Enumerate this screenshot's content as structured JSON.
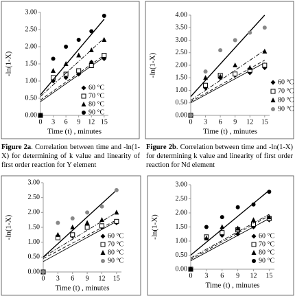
{
  "chart_data": [
    {
      "type": "scatter",
      "x_label": "Time (t) , minutes",
      "y_label": "-ln(1-X)",
      "x": [
        0,
        3,
        6,
        9,
        12,
        15
      ],
      "xlim": [
        0,
        16
      ],
      "xticks": [
        0,
        3,
        6,
        9,
        12,
        15
      ],
      "ylim": [
        0,
        3
      ],
      "yticks": [
        {
          "value": 0,
          "label": "0.00"
        },
        {
          "value": 0.5,
          "label": "0.50"
        },
        {
          "value": 1,
          "label": "1.00"
        },
        {
          "value": 1.5,
          "label": "1.50"
        },
        {
          "value": 2,
          "label": "2.00"
        },
        {
          "value": 2.5,
          "label": "2.50"
        },
        {
          "value": 3,
          "label": "3.00"
        }
      ],
      "trend_x": [
        0,
        15
      ],
      "series": [
        {
          "name": "60 °C",
          "marker": "diamond",
          "color": "#000000",
          "line_style": "solid",
          "values": [
            0,
            1.0,
            1.1,
            1.2,
            1.55,
            1.65
          ],
          "trend": [
            0.4,
            1.7
          ]
        },
        {
          "name": "70 °C",
          "marker": "square-open",
          "color": "#000000",
          "line_style": "dashed",
          "values": [
            0,
            1.1,
            1.2,
            1.3,
            1.45,
            1.75
          ],
          "trend": [
            0.45,
            1.75
          ]
        },
        {
          "name": "80 °C",
          "marker": "triangle",
          "color": "#000000",
          "line_style": "dashdot",
          "values": [
            0,
            1.3,
            1.5,
            1.75,
            1.9,
            2.2
          ],
          "trend": [
            0.55,
            2.25
          ]
        },
        {
          "name": "90 °C",
          "marker": "circle",
          "color": "#000000",
          "line_style": "solid",
          "values": [
            0,
            1.65,
            2.0,
            2.2,
            2.45,
            2.9
          ],
          "trend": [
            0.6,
            2.8
          ]
        }
      ]
    },
    {
      "type": "scatter",
      "x_label": "Time (t) , minutes",
      "y_label": "-ln(1-X)",
      "x": [
        0,
        3,
        6,
        9,
        12,
        15
      ],
      "xlim": [
        0,
        16
      ],
      "xticks": [
        0,
        3,
        6,
        9,
        12,
        15
      ],
      "ylim": [
        0,
        4
      ],
      "yticks": [
        {
          "value": 0,
          "label": "0.00"
        },
        {
          "value": 0.5,
          "label": "0.50"
        },
        {
          "value": 1,
          "label": "1.00"
        },
        {
          "value": 1.5,
          "label": "1.50"
        },
        {
          "value": 2,
          "label": "2.00"
        },
        {
          "value": 2.5,
          "label": "2.50"
        },
        {
          "value": 3,
          "label": "3.00"
        },
        {
          "value": 3.5,
          "label": "3.50"
        },
        {
          "value": 4,
          "label": "4.00"
        }
      ],
      "trend_x": [
        0,
        15
      ],
      "series": [
        {
          "name": "60 °C",
          "marker": "diamond",
          "color": "#000000",
          "line_style": "solid",
          "values": [
            0,
            1.1,
            1.5,
            1.6,
            1.7,
            1.9
          ],
          "trend": [
            0.5,
            2.1
          ]
        },
        {
          "name": "70 °C",
          "marker": "square-open",
          "color": "#000000",
          "line_style": "dashed",
          "values": [
            0,
            1.2,
            1.6,
            1.65,
            1.8,
            2.0
          ],
          "trend": [
            0.55,
            2.2
          ]
        },
        {
          "name": "80 °C",
          "marker": "triangle",
          "color": "#000000",
          "line_style": "dashdot",
          "values": [
            0,
            1.5,
            1.55,
            2.0,
            1.9,
            2.55
          ],
          "trend": [
            0.6,
            2.6
          ]
        },
        {
          "name": "90 °C",
          "marker": "circle",
          "color": "#888888",
          "line_style": "solid",
          "values": [
            0,
            1.75,
            2.6,
            3.0,
            3.3,
            3.5
          ],
          "trend": [
            0.75,
            4.0
          ]
        }
      ]
    },
    {
      "type": "scatter",
      "x_label": "Time (t) , minutes",
      "y_label": "-ln(1-X)",
      "x": [
        0,
        3,
        6,
        9,
        12,
        15
      ],
      "xlim": [
        0,
        16
      ],
      "xticks": [
        0,
        3,
        6,
        9,
        12,
        15
      ],
      "ylim": [
        0,
        3
      ],
      "yticks": [
        {
          "value": 0,
          "label": "0.00"
        },
        {
          "value": 0.5,
          "label": "0.50"
        },
        {
          "value": 1,
          "label": "1.00"
        },
        {
          "value": 1.5,
          "label": "1.50"
        },
        {
          "value": 2,
          "label": "2.00"
        },
        {
          "value": 2.5,
          "label": "2.50"
        },
        {
          "value": 3,
          "label": "3.00"
        }
      ],
      "trend_x": [
        0,
        15
      ],
      "series": [
        {
          "name": "60 °C",
          "marker": "diamond",
          "color": "#000000",
          "line_style": "solid",
          "values": [
            0,
            1.2,
            1.2,
            1.5,
            1.5,
            1.65
          ],
          "trend": [
            0.35,
            1.7
          ]
        },
        {
          "name": "70 °C",
          "marker": "square-open",
          "color": "#000000",
          "line_style": "dashed",
          "values": [
            0,
            1.15,
            1.25,
            1.5,
            1.55,
            1.7
          ],
          "trend": [
            0.45,
            1.75
          ]
        },
        {
          "name": "80 °C",
          "marker": "triangle",
          "color": "#000000",
          "line_style": "dashdot",
          "values": [
            0,
            1.25,
            1.5,
            1.65,
            1.75,
            2.0
          ],
          "trend": [
            0.5,
            2.0
          ]
        },
        {
          "name": "90 °C",
          "marker": "circle",
          "color": "#888888",
          "line_style": "solid",
          "values": [
            0,
            1.65,
            1.8,
            2.0,
            2.2,
            2.75
          ],
          "trend": [
            0.5,
            2.75
          ]
        }
      ]
    },
    {
      "type": "scatter",
      "x_label": "Time (t) , minutes",
      "y_label": "-ln(1-X)",
      "x": [
        0,
        3,
        6,
        9,
        12,
        15
      ],
      "xlim": [
        0,
        16
      ],
      "xticks": [
        0,
        3,
        6,
        9,
        12,
        15
      ],
      "ylim": [
        0,
        3
      ],
      "yticks": [
        {
          "value": 0,
          "label": "0.00"
        },
        {
          "value": 0.5,
          "label": "0.50"
        },
        {
          "value": 1,
          "label": "1.00"
        },
        {
          "value": 1.5,
          "label": "1.50"
        },
        {
          "value": 2,
          "label": "2.00"
        },
        {
          "value": 2.5,
          "label": "2.50"
        },
        {
          "value": 3,
          "label": "3.00"
        }
      ],
      "trend_x": [
        0,
        15
      ],
      "series": [
        {
          "name": "60 °C",
          "marker": "diamond",
          "color": "#000000",
          "line_style": "solid",
          "values": [
            0,
            1.1,
            1.2,
            1.25,
            1.5,
            1.75
          ],
          "trend": [
            0.3,
            1.8
          ]
        },
        {
          "name": "70 °C",
          "marker": "square-open",
          "color": "#000000",
          "line_style": "dashed",
          "values": [
            0,
            1.15,
            1.3,
            1.4,
            1.6,
            1.8
          ],
          "trend": [
            0.35,
            1.9
          ]
        },
        {
          "name": "80 °C",
          "marker": "triangle",
          "color": "#000000",
          "line_style": "dashdot",
          "values": [
            0,
            1.1,
            1.5,
            1.45,
            1.75,
            1.85
          ],
          "trend": [
            0.4,
            1.95
          ]
        },
        {
          "name": "90 °C",
          "marker": "circle",
          "color": "#000000",
          "line_style": "solid",
          "values": [
            0,
            1.5,
            1.85,
            2.2,
            2.3,
            2.75
          ],
          "trend": [
            0.5,
            2.8
          ]
        }
      ]
    }
  ],
  "captions": [
    {
      "label": "Figure 2a",
      "text": ". Correlation between time and -ln(1-X) for determining of k value and linearity of first order reaction for Y element"
    },
    {
      "label": "Figure 2b",
      "text": ". Correlation between time and -ln(1-X) for determining k value and linearity of first order reaction for Nd element"
    }
  ]
}
